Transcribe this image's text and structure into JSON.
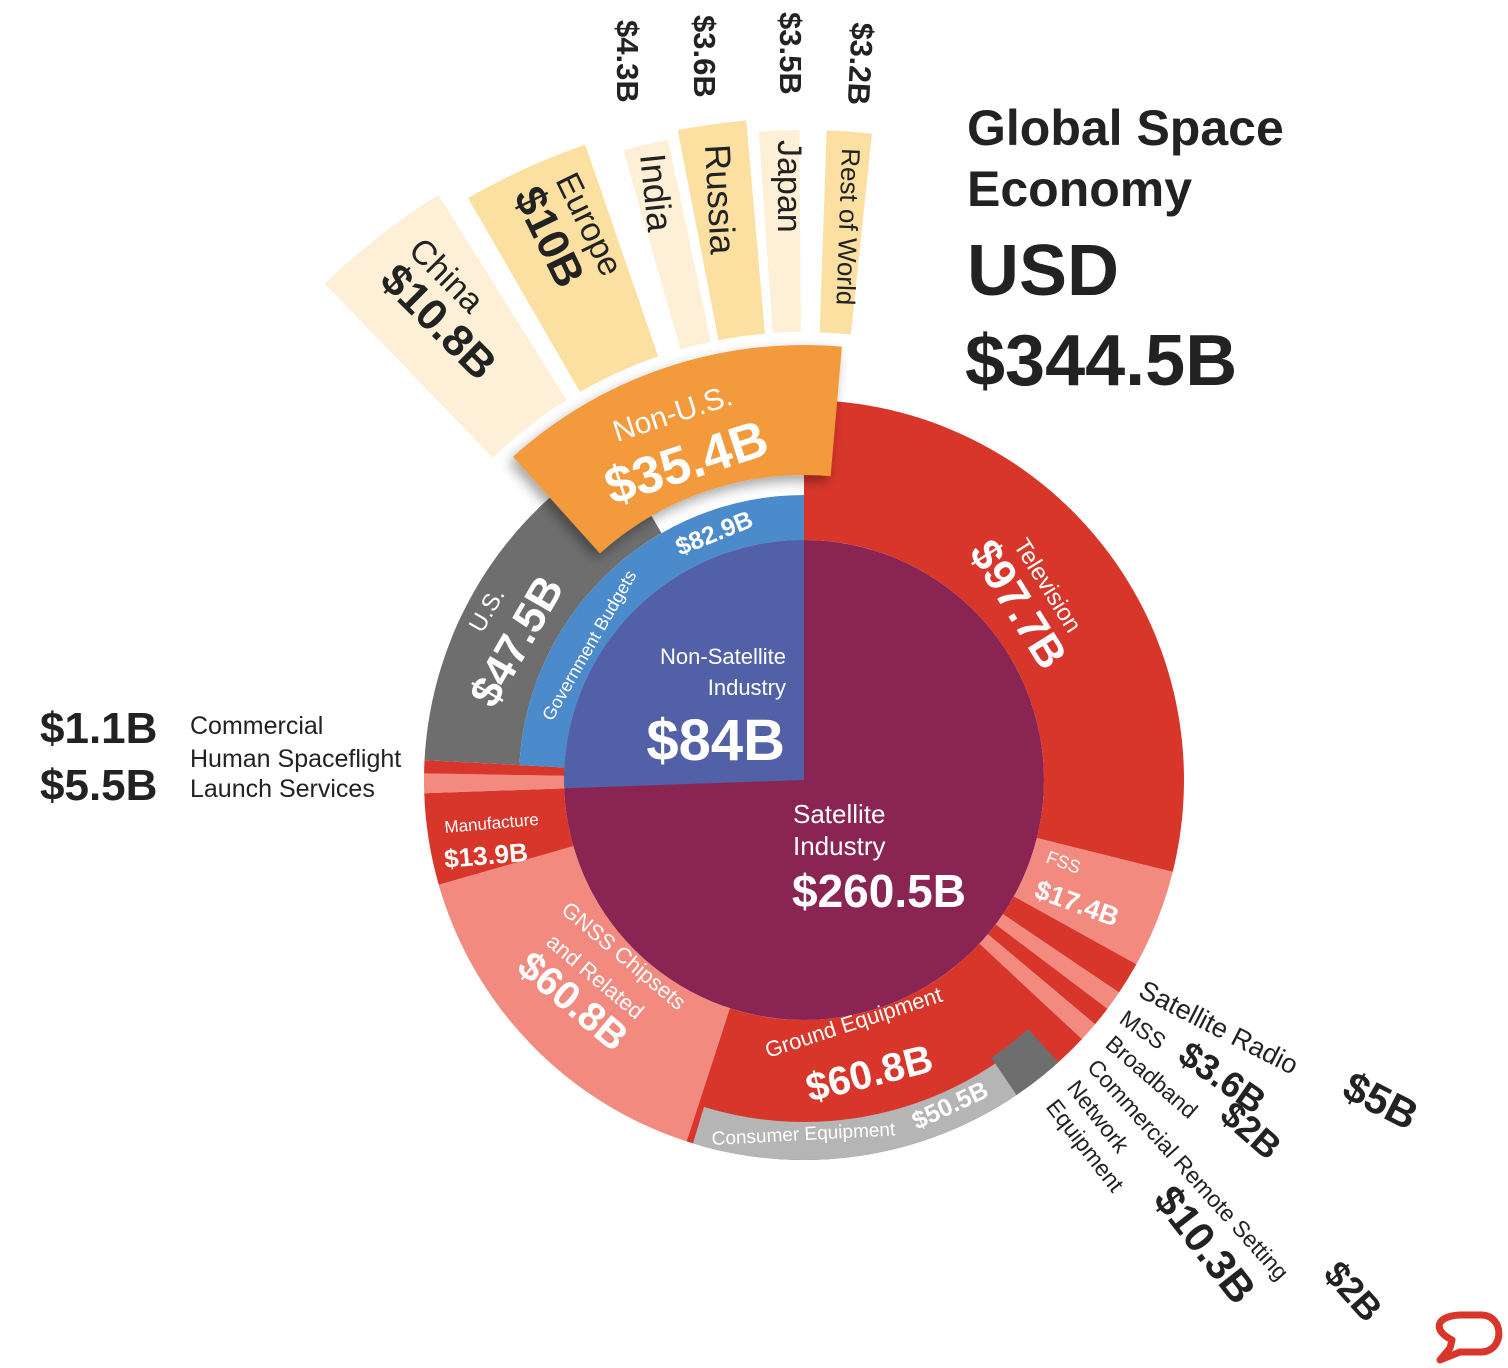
{
  "title": {
    "line1": "Global Space",
    "line2": "Economy",
    "currency": "USD",
    "total": "$344.5B"
  },
  "chart_data": {
    "type": "sunburst",
    "title": "Global Space Economy",
    "unit": "USD billions",
    "total": 344.5,
    "colors": {
      "satellite": "#8a2452",
      "non_satellite": "#5260a8",
      "government": "#4b8acb",
      "us": "#6e6e6e",
      "non_us": "#f39a3e",
      "red": "#d8362a",
      "pink": "#f28a80",
      "consumer": "#b5b5b5",
      "country_light": "#fdf0d7",
      "country_dark": "#fbe0a2"
    },
    "root": [
      {
        "label": "Non-Satellite Industry",
        "line1": "Non-Satellite",
        "line2": "Industry",
        "value": 84,
        "value_label": "$84B"
      },
      {
        "label": "Satellite Industry",
        "line1": "Satellite",
        "line2": "Industry",
        "value": 260.5,
        "value_label": "$260.5B"
      }
    ],
    "non_satellite": [
      {
        "label": "Government Budgets",
        "value": 82.9,
        "value_label": "$82.9B"
      },
      {
        "label": "Commercial Human Spaceflight",
        "line1": "Commercial",
        "line2": "Human Spaceflight",
        "value": 1.1,
        "value_label": "$1.1B"
      }
    ],
    "government": [
      {
        "label": "U.S.",
        "value": 47.5,
        "value_label": "$47.5B"
      },
      {
        "label": "Non-U.S.",
        "value": 35.4,
        "value_label": "$35.4B"
      }
    ],
    "non_us": [
      {
        "label": "China",
        "value": 10.8,
        "value_label": "$10.8B"
      },
      {
        "label": "Europe",
        "value": 10,
        "value_label": "$10B"
      },
      {
        "label": "India",
        "value": 4.3,
        "value_label": "$4.3B"
      },
      {
        "label": "Russia",
        "value": 3.6,
        "value_label": "$3.6B"
      },
      {
        "label": "Japan",
        "value": 3.5,
        "value_label": "$3.5B"
      },
      {
        "label": "Rest of World",
        "value": 3.2,
        "value_label": "$3.2B"
      }
    ],
    "satellite": [
      {
        "label": "Television",
        "value": 97.7,
        "value_label": "$97.7B"
      },
      {
        "label": "FSS",
        "value": 17.4,
        "value_label": "$17.4B"
      },
      {
        "label": "Satellite Radio",
        "value": 5,
        "value_label": "$5B"
      },
      {
        "label": "MSS",
        "value": 3.6,
        "value_label": "$3.6B"
      },
      {
        "label": "Broadband",
        "value": 2,
        "value_label": "$2B"
      },
      {
        "label": "Commercial Remote Setting",
        "value": 2,
        "value_label": "$2B"
      },
      {
        "label": "Network Equipment",
        "line1": "Network",
        "line2": "Equipment",
        "value": 10.3,
        "value_label": "$10.3B"
      },
      {
        "label": "Ground Equipment",
        "value": 60.8,
        "value_label": "$60.8B"
      },
      {
        "label": "Consumer Equipment",
        "value": 50.5,
        "value_label": "$50.5B"
      },
      {
        "label": "GNSS Chipsets and Related",
        "line1": "GNSS Chipsets",
        "line2": "and Related",
        "value": 60.8,
        "value_label": "$60.8B"
      },
      {
        "label": "Manufacture",
        "value": 13.9,
        "value_label": "$13.9B"
      },
      {
        "label": "Launch Services",
        "value": 5.5,
        "value_label": "$5.5B"
      }
    ]
  }
}
